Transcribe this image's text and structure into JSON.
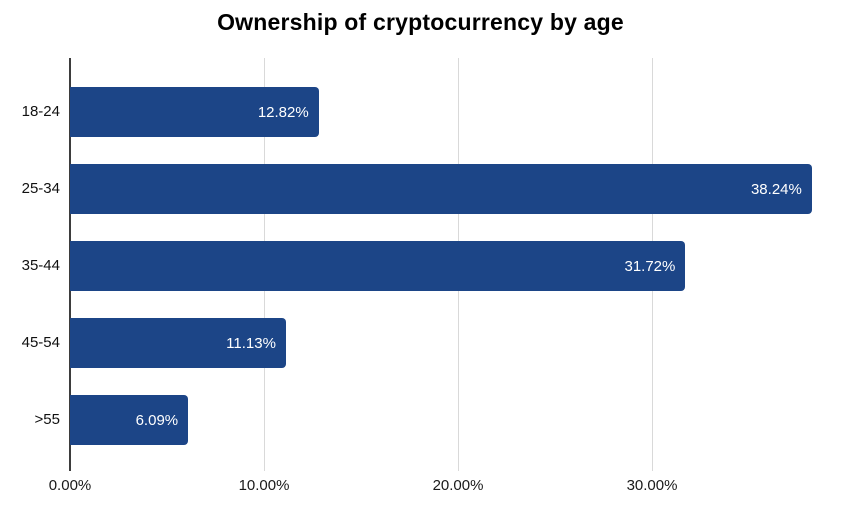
{
  "chart_data": {
    "type": "bar",
    "orientation": "horizontal",
    "title": "Ownership of cryptocurrency by age",
    "categories": [
      "18-24",
      "25-34",
      "35-44",
      "45-54",
      ">55"
    ],
    "values": [
      12.82,
      38.24,
      31.72,
      11.13,
      6.09
    ],
    "data_labels": [
      "12.82%",
      "38.24%",
      "31.72%",
      "11.13%",
      "6.09%"
    ],
    "xlabel": "",
    "ylabel": "",
    "x_axis": {
      "ticks": [
        0,
        10,
        20,
        30
      ],
      "tick_labels": [
        "0.00%",
        "10.00%",
        "20.00%",
        "30.00%"
      ],
      "range": [
        0,
        38.76
      ]
    },
    "grid": true,
    "legend_position": "none",
    "colors": {
      "bar": "#1c4587",
      "grid_line": "#d9d9d9",
      "axis_line": "#3d3d3d",
      "title_text": "#000000",
      "axis_text": "#1a1a1a",
      "data_label_text": "#ffffff",
      "background": "#ffffff"
    }
  }
}
